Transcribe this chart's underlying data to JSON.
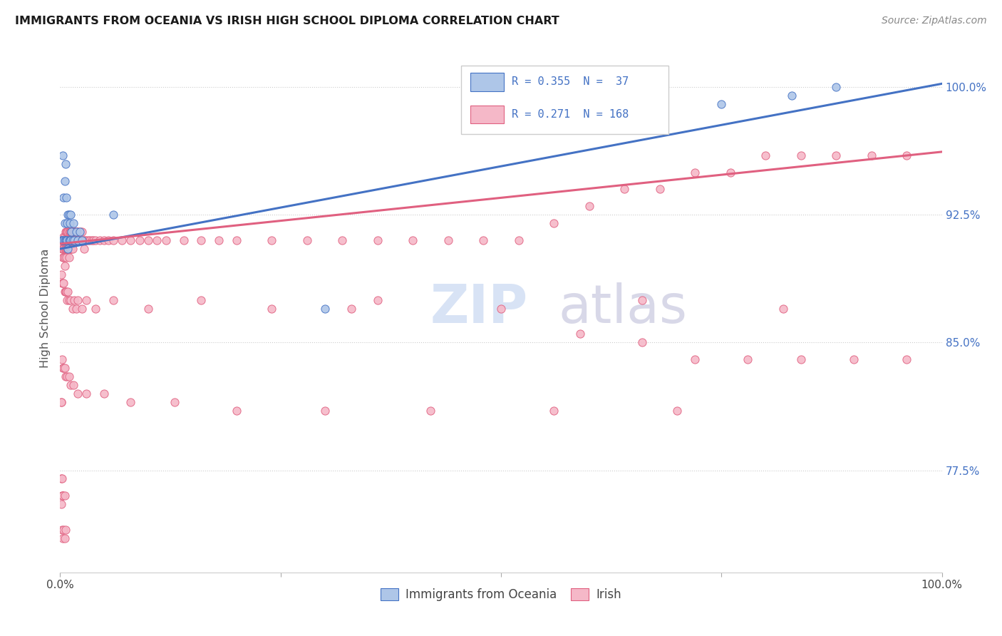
{
  "title": "IMMIGRANTS FROM OCEANIA VS IRISH HIGH SCHOOL DIPLOMA CORRELATION CHART",
  "source": "Source: ZipAtlas.com",
  "ylabel": "High School Diploma",
  "yticks": [
    "77.5%",
    "85.0%",
    "92.5%",
    "100.0%"
  ],
  "ytick_vals": [
    0.775,
    0.85,
    0.925,
    1.0
  ],
  "xrange": [
    0.0,
    1.0
  ],
  "yrange": [
    0.715,
    1.025
  ],
  "legend_r1": "0.355",
  "legend_n1": " 37",
  "legend_r2": "0.271",
  "legend_n2": "168",
  "color_oceania": "#aec6e8",
  "color_irish": "#f5b8c8",
  "color_line_oceania": "#4472c4",
  "color_line_irish": "#e06080",
  "color_title": "#1a1a1a",
  "color_ytick": "#4472c4",
  "color_source": "#888888",
  "background": "#ffffff",
  "oceania_x": [
    0.001,
    0.002,
    0.003,
    0.003,
    0.004,
    0.004,
    0.005,
    0.005,
    0.005,
    0.006,
    0.006,
    0.007,
    0.007,
    0.008,
    0.008,
    0.009,
    0.009,
    0.01,
    0.01,
    0.011,
    0.011,
    0.012,
    0.012,
    0.013,
    0.014,
    0.015,
    0.016,
    0.018,
    0.02,
    0.022,
    0.025,
    0.06,
    0.3,
    0.65,
    0.75,
    0.83,
    0.88
  ],
  "oceania_y": [
    0.91,
    0.91,
    0.96,
    0.91,
    0.935,
    0.91,
    0.92,
    0.91,
    0.945,
    0.91,
    0.955,
    0.91,
    0.935,
    0.92,
    0.91,
    0.925,
    0.905,
    0.925,
    0.91,
    0.92,
    0.91,
    0.925,
    0.91,
    0.915,
    0.91,
    0.92,
    0.91,
    0.915,
    0.91,
    0.915,
    0.91,
    0.925,
    0.87,
    0.98,
    0.99,
    0.995,
    1.0
  ],
  "irish_x": [
    0.001,
    0.001,
    0.002,
    0.002,
    0.002,
    0.003,
    0.003,
    0.003,
    0.003,
    0.004,
    0.004,
    0.004,
    0.005,
    0.005,
    0.005,
    0.005,
    0.006,
    0.006,
    0.006,
    0.007,
    0.007,
    0.007,
    0.007,
    0.008,
    0.008,
    0.008,
    0.009,
    0.009,
    0.009,
    0.01,
    0.01,
    0.01,
    0.01,
    0.011,
    0.011,
    0.011,
    0.012,
    0.012,
    0.012,
    0.013,
    0.013,
    0.013,
    0.014,
    0.014,
    0.014,
    0.015,
    0.015,
    0.016,
    0.016,
    0.017,
    0.017,
    0.018,
    0.018,
    0.019,
    0.019,
    0.02,
    0.02,
    0.021,
    0.022,
    0.023,
    0.024,
    0.025,
    0.026,
    0.027,
    0.028,
    0.03,
    0.032,
    0.034,
    0.036,
    0.038,
    0.04,
    0.045,
    0.05,
    0.055,
    0.06,
    0.07,
    0.08,
    0.09,
    0.1,
    0.11,
    0.12,
    0.14,
    0.16,
    0.18,
    0.2,
    0.24,
    0.28,
    0.32,
    0.36,
    0.4,
    0.44,
    0.48,
    0.52,
    0.56,
    0.6,
    0.64,
    0.68,
    0.72,
    0.76,
    0.8,
    0.84,
    0.88,
    0.92,
    0.96,
    0.001,
    0.002,
    0.003,
    0.004,
    0.005,
    0.006,
    0.007,
    0.008,
    0.009,
    0.01,
    0.012,
    0.014,
    0.016,
    0.018,
    0.02,
    0.025,
    0.03,
    0.04,
    0.06,
    0.1,
    0.16,
    0.24,
    0.36,
    0.5,
    0.66,
    0.82,
    0.002,
    0.003,
    0.004,
    0.005,
    0.006,
    0.008,
    0.01,
    0.012,
    0.015,
    0.02,
    0.03,
    0.05,
    0.08,
    0.13,
    0.2,
    0.3,
    0.42,
    0.56,
    0.7,
    0.001,
    0.001,
    0.002,
    0.003,
    0.004,
    0.005,
    0.006,
    0.33,
    0.59,
    0.66,
    0.72,
    0.78,
    0.84,
    0.9,
    0.96,
    0.001,
    0.002,
    0.003,
    0.005
  ],
  "irish_y": [
    0.91,
    0.755,
    0.91,
    0.905,
    0.76,
    0.91,
    0.905,
    0.9,
    0.76,
    0.912,
    0.905,
    0.9,
    0.912,
    0.905,
    0.9,
    0.895,
    0.915,
    0.91,
    0.905,
    0.915,
    0.91,
    0.905,
    0.9,
    0.915,
    0.91,
    0.905,
    0.915,
    0.91,
    0.905,
    0.915,
    0.91,
    0.905,
    0.9,
    0.915,
    0.91,
    0.905,
    0.915,
    0.91,
    0.905,
    0.915,
    0.91,
    0.905,
    0.915,
    0.91,
    0.905,
    0.915,
    0.91,
    0.915,
    0.91,
    0.915,
    0.91,
    0.915,
    0.91,
    0.915,
    0.91,
    0.915,
    0.91,
    0.915,
    0.91,
    0.915,
    0.91,
    0.915,
    0.91,
    0.905,
    0.91,
    0.91,
    0.91,
    0.91,
    0.91,
    0.91,
    0.91,
    0.91,
    0.91,
    0.91,
    0.91,
    0.91,
    0.91,
    0.91,
    0.91,
    0.91,
    0.91,
    0.91,
    0.91,
    0.91,
    0.91,
    0.91,
    0.91,
    0.91,
    0.91,
    0.91,
    0.91,
    0.91,
    0.91,
    0.92,
    0.93,
    0.94,
    0.94,
    0.95,
    0.95,
    0.96,
    0.96,
    0.96,
    0.96,
    0.96,
    0.89,
    0.885,
    0.885,
    0.885,
    0.88,
    0.88,
    0.88,
    0.875,
    0.88,
    0.875,
    0.875,
    0.87,
    0.875,
    0.87,
    0.875,
    0.87,
    0.875,
    0.87,
    0.875,
    0.87,
    0.875,
    0.87,
    0.875,
    0.87,
    0.875,
    0.87,
    0.84,
    0.835,
    0.835,
    0.835,
    0.83,
    0.83,
    0.83,
    0.825,
    0.825,
    0.82,
    0.82,
    0.82,
    0.815,
    0.815,
    0.81,
    0.81,
    0.81,
    0.81,
    0.81,
    0.815,
    0.815,
    0.74,
    0.735,
    0.74,
    0.735,
    0.74,
    0.87,
    0.855,
    0.85,
    0.84,
    0.84,
    0.84,
    0.84,
    0.84,
    0.77,
    0.77,
    0.76,
    0.76
  ]
}
